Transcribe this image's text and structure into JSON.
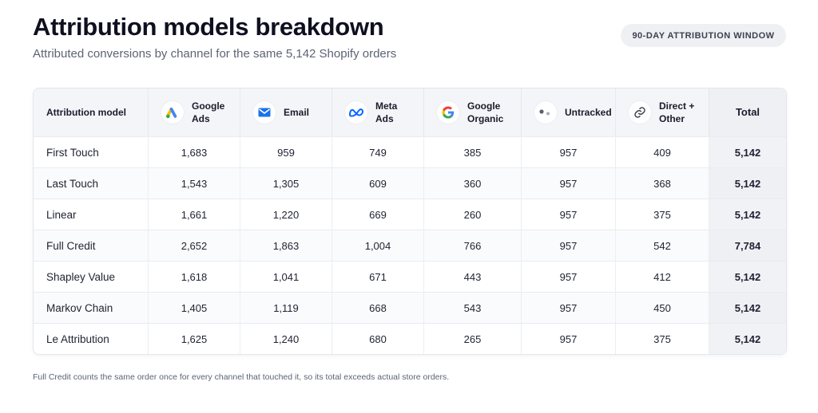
{
  "header": {
    "title": "Attribution models breakdown",
    "subtitle": "Attributed conversions by channel for the same 5,142 Shopify orders",
    "badge": "90-DAY ATTRIBUTION WINDOW"
  },
  "table": {
    "first_column": "Attribution model",
    "channels": [
      {
        "label": "Google Ads",
        "icon": "google-ads-icon"
      },
      {
        "label": "Email",
        "icon": "email-icon"
      },
      {
        "label": "Meta Ads",
        "icon": "meta-icon"
      },
      {
        "label": "Google Organic",
        "icon": "google-icon"
      },
      {
        "label": "Untracked",
        "icon": "untracked-dots-icon"
      },
      {
        "label": "Direct + Other",
        "icon": "link-icon"
      }
    ],
    "total_column": "Total",
    "rows": [
      {
        "model": "First Touch",
        "values": [
          "1,683",
          "959",
          "749",
          "385",
          "957",
          "409"
        ],
        "total": "5,142"
      },
      {
        "model": "Last Touch",
        "values": [
          "1,543",
          "1,305",
          "609",
          "360",
          "957",
          "368"
        ],
        "total": "5,142"
      },
      {
        "model": "Linear",
        "values": [
          "1,661",
          "1,220",
          "669",
          "260",
          "957",
          "375"
        ],
        "total": "5,142"
      },
      {
        "model": "Full Credit",
        "values": [
          "2,652",
          "1,863",
          "1,004",
          "766",
          "957",
          "542"
        ],
        "total": "7,784"
      },
      {
        "model": "Shapley Value",
        "values": [
          "1,618",
          "1,041",
          "671",
          "443",
          "957",
          "412"
        ],
        "total": "5,142"
      },
      {
        "model": "Markov Chain",
        "values": [
          "1,405",
          "1,119",
          "668",
          "543",
          "957",
          "450"
        ],
        "total": "5,142"
      },
      {
        "model": "Le Attribution",
        "values": [
          "1,625",
          "1,240",
          "680",
          "265",
          "957",
          "375"
        ],
        "total": "5,142"
      }
    ]
  },
  "footnote": "Full Credit counts the same order once for every channel that touched it, so its total exceeds actual store orders.",
  "colors": {
    "google_blue": "#4285F4",
    "google_red": "#EA4335",
    "google_yellow": "#FBBC05",
    "google_green": "#34A853",
    "email_blue": "#1a73e8",
    "meta_blue": "#0866FF"
  }
}
